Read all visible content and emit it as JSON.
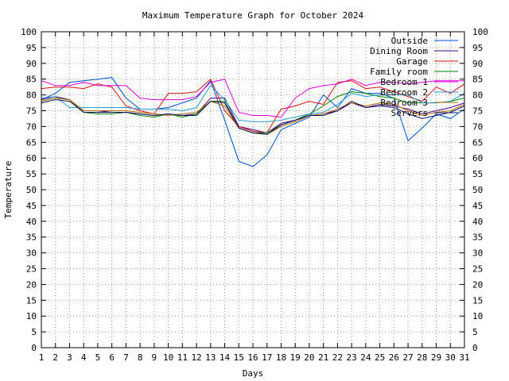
{
  "chart_data": {
    "type": "line",
    "title": "Maximum Temperature Graph for October 2024",
    "xlabel": "Days",
    "ylabel": "Temperature",
    "xlim": [
      1,
      31
    ],
    "ylim": [
      0,
      100
    ],
    "x_ticks": [
      1,
      2,
      3,
      4,
      5,
      6,
      7,
      8,
      9,
      10,
      11,
      12,
      13,
      14,
      15,
      16,
      17,
      18,
      19,
      20,
      21,
      22,
      23,
      24,
      25,
      26,
      27,
      28,
      29,
      30,
      31
    ],
    "y_ticks": [
      0,
      5,
      10,
      15,
      20,
      25,
      30,
      35,
      40,
      45,
      50,
      55,
      60,
      65,
      70,
      75,
      80,
      85,
      90,
      95,
      100
    ],
    "grid": true,
    "legend_position": "top-right",
    "x": [
      1,
      2,
      3,
      4,
      5,
      6,
      7,
      8,
      9,
      10,
      11,
      12,
      13,
      14,
      15,
      16,
      17,
      18,
      19,
      20,
      21,
      22,
      23,
      24,
      25,
      26,
      27,
      28,
      29,
      30,
      31
    ],
    "series": [
      {
        "name": "Outside",
        "color": "#0048c8",
        "values": [
          78.5,
          80.5,
          84,
          84.5,
          85,
          85.5,
          79,
          75.5,
          75.5,
          76,
          77.5,
          79,
          84.5,
          72,
          59,
          57.3,
          61,
          69,
          71,
          73,
          80,
          76,
          82,
          80.5,
          80.5,
          79,
          65.5,
          69.5,
          74,
          72.5,
          75.5
        ]
      },
      {
        "name": "Dining Room",
        "color": "#4b0082",
        "values": [
          78.5,
          79.5,
          78.5,
          75,
          75,
          74.5,
          74.5,
          74,
          73.5,
          74,
          73.5,
          74,
          79,
          79,
          70,
          69,
          68,
          71,
          72,
          73.5,
          74,
          75,
          77.5,
          76,
          77,
          76.5,
          75.5,
          74,
          75,
          76,
          77.5
        ]
      },
      {
        "name": "Garage",
        "color": "#d01010",
        "values": [
          82,
          82.5,
          82.5,
          82,
          83.5,
          82.5,
          76.5,
          75,
          74,
          80.5,
          80.5,
          81,
          85,
          75,
          70,
          68.5,
          68,
          75.5,
          76.5,
          78,
          77,
          84,
          84.5,
          82,
          82.5,
          81,
          79.5,
          78,
          82.5,
          80.5,
          83.5
        ]
      },
      {
        "name": "Family room",
        "color": "#008000",
        "values": [
          78,
          79,
          78.5,
          74.5,
          74,
          74,
          74.5,
          73.5,
          73,
          74,
          73,
          74,
          78,
          78,
          69.5,
          68,
          68,
          70.5,
          72,
          74,
          76.5,
          79.5,
          81,
          80.5,
          79.5,
          79,
          77.5,
          77.5,
          77.5,
          78,
          79
        ]
      },
      {
        "name": "Bedroom 1",
        "color": "#e000e0",
        "values": [
          84.5,
          83,
          83,
          84,
          83,
          83,
          83,
          79,
          78.5,
          78.5,
          78.5,
          79.5,
          84,
          85,
          74.5,
          73.5,
          73.5,
          73,
          79,
          82,
          83,
          83.5,
          85,
          83,
          84,
          84,
          83.5,
          84,
          84.5,
          84.5,
          84.5
        ]
      },
      {
        "name": "Bedroom 2",
        "color": "#2a9ad0",
        "values": [
          79,
          79.5,
          76,
          76,
          76,
          76,
          76,
          75.5,
          75.5,
          75.5,
          75,
          76,
          83,
          78.5,
          72,
          71.5,
          71.5,
          72,
          73,
          74,
          74.5,
          77,
          80.5,
          79.5,
          80,
          80,
          80,
          77.5,
          77.5,
          78,
          80.5
        ]
      },
      {
        "name": "Bedroom 3",
        "color": "#b07000",
        "values": [
          78,
          79,
          78.5,
          75,
          75,
          75,
          75,
          74.5,
          74,
          73.5,
          74,
          74.5,
          78,
          76.5,
          69.5,
          68,
          67.5,
          70,
          71.5,
          73.5,
          74,
          75.5,
          77.5,
          76.5,
          77.5,
          77,
          75,
          73.5,
          74.5,
          75,
          77
        ]
      },
      {
        "name": "Servers",
        "color": "#101060",
        "values": [
          77.5,
          78.5,
          78,
          74.5,
          74.5,
          74.5,
          74.5,
          74,
          73.5,
          74,
          73.5,
          73.5,
          78,
          77.5,
          69.5,
          68,
          67.5,
          70.5,
          72,
          73.5,
          73.5,
          75,
          78,
          76,
          76.5,
          76,
          74,
          72.5,
          73.5,
          74.5,
          76.5
        ]
      }
    ]
  }
}
